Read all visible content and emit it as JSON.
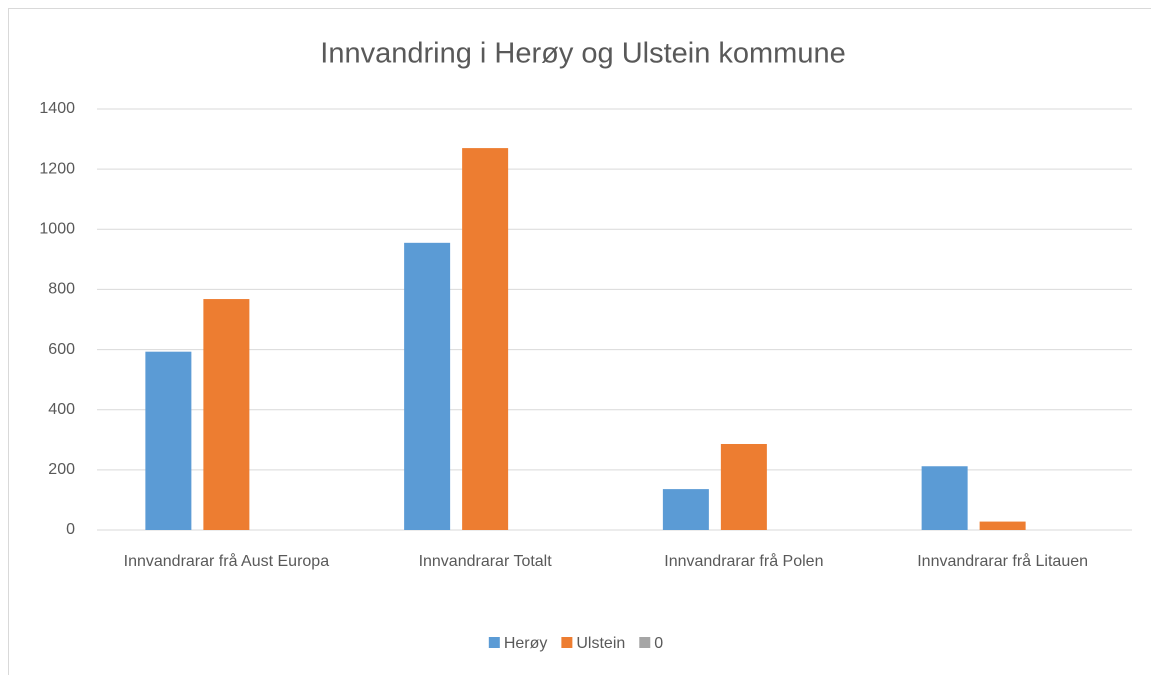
{
  "chart_data": {
    "type": "bar",
    "title": "Innvandring i Herøy og Ulstein kommune",
    "categories": [
      "Innvandrarar frå Aust Europa",
      "Innvandrarar Totalt",
      "Innvandrarar frå Polen",
      "Innvandrarar frå Litauen"
    ],
    "series": [
      {
        "name": "Herøy",
        "color": "#5b9bd5",
        "values": [
          593,
          955,
          136,
          212
        ]
      },
      {
        "name": "Ulstein",
        "color": "#ed7d31",
        "values": [
          768,
          1270,
          286,
          28
        ]
      },
      {
        "name": "0",
        "color": "#a5a5a5",
        "values": [
          0,
          0,
          0,
          0
        ]
      }
    ],
    "ylim": [
      0,
      1400
    ],
    "yticks": [
      0,
      200,
      400,
      600,
      800,
      1000,
      1200,
      1400
    ],
    "grid": true,
    "legend": "bottom"
  }
}
